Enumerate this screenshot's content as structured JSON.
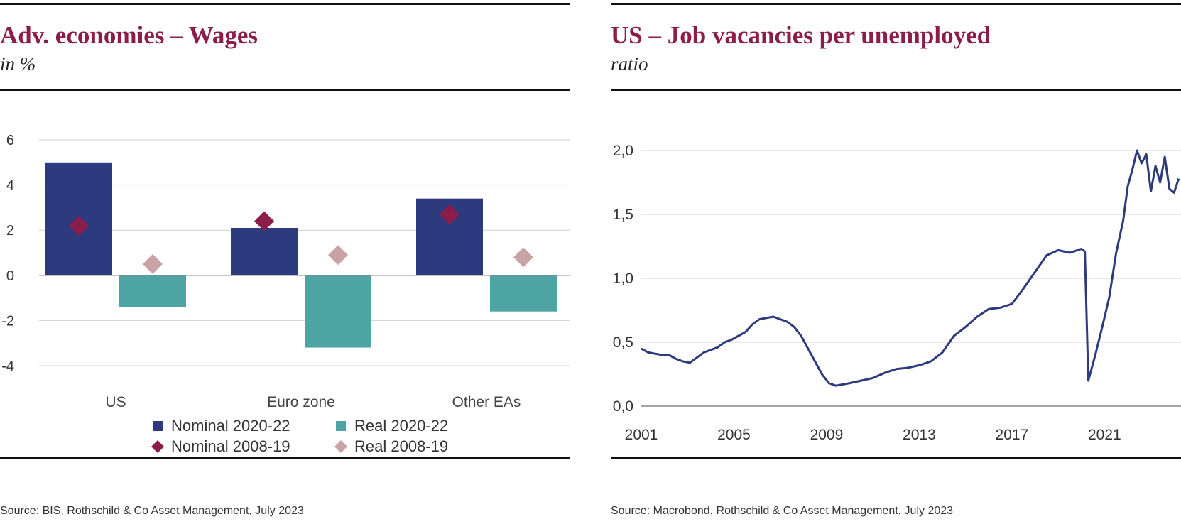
{
  "left": {
    "title": "Adv. economies – Wages",
    "subtitle": "in %",
    "source": "Source: BIS, Rothschild & Co Asset Management, July 2023"
  },
  "right": {
    "title": "US – Job vacancies per unemployed",
    "subtitle": "ratio",
    "source": "Source: Macrobond, Rothschild & Co Asset Management, July 2023"
  },
  "colors": {
    "title": "#8c1c4a",
    "nominal_2020_22": "#2e3a7e",
    "real_2020_22": "#4ea3a3",
    "nominal_2008_19": "#8c1c4a",
    "real_2008_19": "#c9a3a3",
    "line": "#2e3a7e",
    "grid": "#d0d0d0"
  },
  "chart_data": [
    {
      "type": "bar",
      "categories": [
        "US",
        "Euro zone",
        "Other EAs"
      ],
      "ylim": [
        -4,
        6
      ],
      "yticks": [
        "-4",
        "-2",
        "0",
        "2",
        "4",
        "6"
      ],
      "series": [
        {
          "name": "Nominal 2020-22",
          "mark": "bar",
          "values": [
            5.0,
            2.1,
            3.4
          ]
        },
        {
          "name": "Real 2020-22",
          "mark": "bar",
          "values": [
            -1.4,
            -3.2,
            -1.6
          ]
        },
        {
          "name": "Nominal 2008-19",
          "mark": "diamond",
          "values": [
            2.2,
            2.4,
            2.7
          ]
        },
        {
          "name": "Real 2008-19",
          "mark": "diamond",
          "values": [
            0.5,
            0.9,
            0.8
          ]
        }
      ],
      "legend": {
        "position": "bottom",
        "items": [
          {
            "label": "Nominal 2020-22",
            "shape": "square",
            "color": "#2e3a7e"
          },
          {
            "label": "Real 2020-22",
            "shape": "square",
            "color": "#4ea3a3"
          },
          {
            "label": "Nominal 2008-19",
            "shape": "diamond",
            "color": "#8c1c4a"
          },
          {
            "label": "Real 2008-19",
            "shape": "diamond",
            "color": "#c9a3a3"
          }
        ]
      },
      "grid": true
    },
    {
      "type": "line",
      "ylim": [
        0,
        2.0
      ],
      "yticks": [
        "0,0",
        "0,5",
        "1,0",
        "1,5",
        "2,0"
      ],
      "xticks": [
        "2001",
        "2005",
        "2009",
        "2013",
        "2017",
        "2021"
      ],
      "xlim": [
        2001,
        2024.3
      ],
      "grid": true,
      "series": [
        {
          "x": [
            2001.0,
            2001.3,
            2001.6,
            2001.9,
            2002.2,
            2002.5,
            2002.8,
            2003.1,
            2003.4,
            2003.7,
            2004.0,
            2004.3,
            2004.6,
            2004.9,
            2005.2,
            2005.5,
            2005.8,
            2006.1,
            2006.4,
            2006.7,
            2007.0,
            2007.3,
            2007.6,
            2007.9,
            2008.2,
            2008.5,
            2008.8,
            2009.1,
            2009.4,
            2009.7,
            2010.0,
            2010.5,
            2011.0,
            2011.5,
            2012.0,
            2012.5,
            2013.0,
            2013.5,
            2014.0,
            2014.5,
            2015.0,
            2015.5,
            2016.0,
            2016.5,
            2017.0,
            2017.5,
            2018.0,
            2018.5,
            2019.0,
            2019.5,
            2020.0,
            2020.15,
            2020.3,
            2020.6,
            2020.9,
            2021.2,
            2021.5,
            2021.8,
            2022.0,
            2022.2,
            2022.4,
            2022.6,
            2022.8,
            2023.0,
            2023.2,
            2023.4,
            2023.6,
            2023.8,
            2024.0,
            2024.2
          ],
          "y": [
            0.45,
            0.42,
            0.41,
            0.4,
            0.4,
            0.37,
            0.35,
            0.34,
            0.38,
            0.42,
            0.44,
            0.46,
            0.5,
            0.52,
            0.55,
            0.58,
            0.64,
            0.68,
            0.69,
            0.7,
            0.68,
            0.66,
            0.62,
            0.55,
            0.45,
            0.35,
            0.25,
            0.18,
            0.16,
            0.17,
            0.18,
            0.2,
            0.22,
            0.26,
            0.29,
            0.3,
            0.32,
            0.35,
            0.42,
            0.55,
            0.62,
            0.7,
            0.76,
            0.77,
            0.8,
            0.92,
            1.05,
            1.18,
            1.22,
            1.2,
            1.23,
            1.21,
            0.2,
            0.4,
            0.62,
            0.85,
            1.2,
            1.45,
            1.72,
            1.85,
            2.0,
            1.9,
            1.97,
            1.68,
            1.88,
            1.75,
            1.95,
            1.7,
            1.67,
            1.78
          ]
        }
      ]
    }
  ]
}
